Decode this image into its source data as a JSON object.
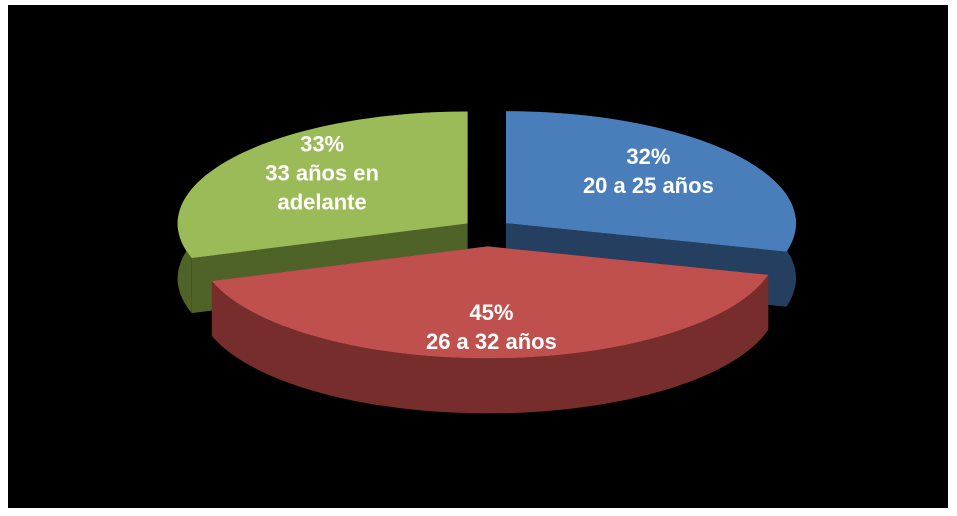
{
  "chart_data": {
    "type": "pie",
    "categories": [
      "20 a 25 años",
      "26 a 32 años",
      "33 años en adelante"
    ],
    "values": [
      32,
      45,
      33
    ],
    "value_labels": [
      "32%",
      "45%",
      "33%"
    ],
    "colors": [
      "#4a7ebb",
      "#c0504d",
      "#9bbb59"
    ],
    "side_colors": [
      "#243f60",
      "#772d2b",
      "#4f6228"
    ],
    "three_d": true,
    "exploded": true
  }
}
